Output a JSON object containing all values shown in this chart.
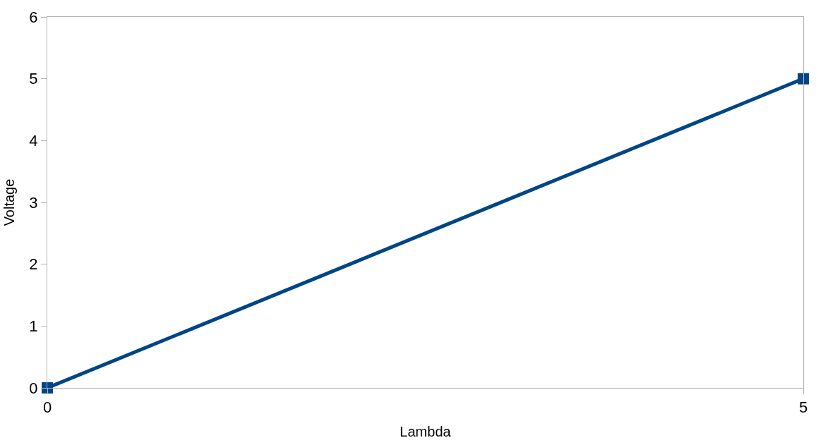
{
  "chart_data": {
    "type": "line",
    "xlabel": "Lambda",
    "ylabel": "Voltage",
    "x": [
      0,
      5
    ],
    "series": [
      {
        "color": "#004586",
        "values": [
          0,
          5
        ]
      }
    ],
    "xlim": [
      0,
      5
    ],
    "xticks": [
      0,
      5
    ],
    "ylim": [
      0,
      6
    ],
    "yticks": [
      0,
      1,
      2,
      3,
      4,
      5,
      6
    ],
    "grid": false,
    "legend": false,
    "marker": "square",
    "line_style": "solid"
  }
}
